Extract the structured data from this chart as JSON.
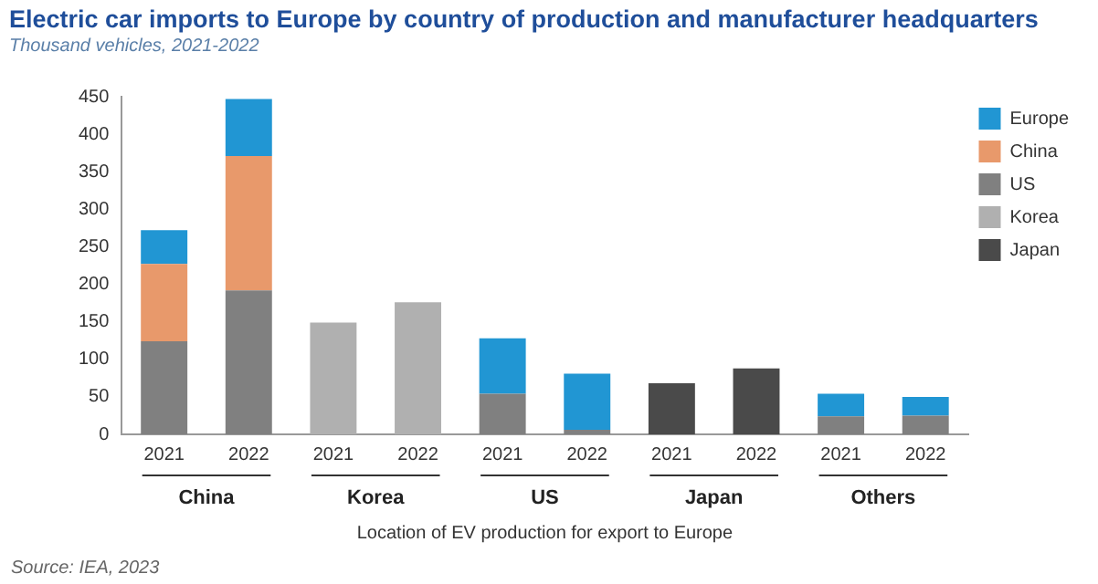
{
  "chart_data": {
    "type": "bar",
    "title": "Electric car imports to Europe by country of production and manufacturer headquarters",
    "subtitle": "Thousand vehicles, 2021-2022",
    "xlabel": "Location of EV production for export to Europe",
    "categories": [
      "2021",
      "2022",
      "2021",
      "2022",
      "2021",
      "2022",
      "2021",
      "2022",
      "2021",
      "2022"
    ],
    "stacked": true,
    "series": [
      {
        "name": "Japan",
        "color": "#4a4a4a",
        "values": [
          null,
          null,
          null,
          null,
          null,
          null,
          68,
          88,
          null,
          null
        ]
      },
      {
        "name": "Korea",
        "color": "#b0b0b0",
        "values": [
          null,
          null,
          149,
          176,
          null,
          null,
          null,
          null,
          null,
          null
        ]
      },
      {
        "name": "US",
        "color": "#808080",
        "values": [
          124,
          192,
          null,
          null,
          54,
          6,
          null,
          null,
          24,
          25
        ]
      },
      {
        "name": "China",
        "color": "#e8996b",
        "values": [
          103,
          179,
          null,
          null,
          null,
          null,
          null,
          null,
          null,
          null
        ]
      },
      {
        "name": "Europe",
        "color": "#2196d3",
        "values": [
          45,
          76,
          null,
          null,
          74,
          75,
          null,
          null,
          30,
          25
        ]
      }
    ],
    "ylim": [
      0,
      450
    ],
    "yticks": [
      0,
      50,
      100,
      150,
      200,
      250,
      300,
      350,
      400,
      450
    ],
    "grid": false,
    "legend": "top right",
    "annotations": [
      "China",
      "Korea",
      "US",
      "Japan",
      "Others",
      "Source: IEA, 2023"
    ]
  }
}
